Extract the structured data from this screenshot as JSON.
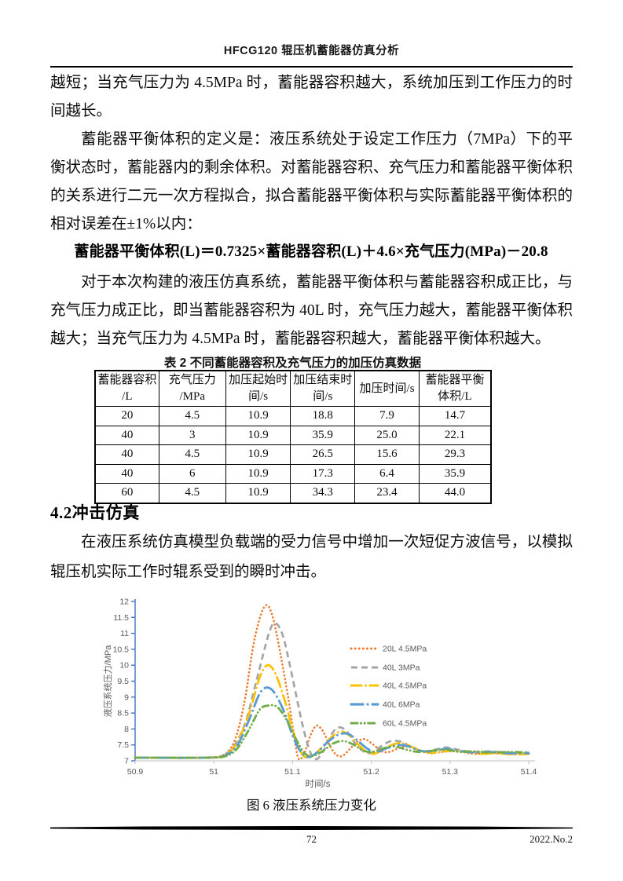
{
  "header": {
    "title": "HFCG120 辊压机蓄能器仿真分析"
  },
  "paragraphs": {
    "p1": "越短；当充气压力为 4.5MPa 时，蓄能器容积越大，系统加压到工作压力的时间越长。",
    "p2": "蓄能器平衡体积的定义是：液压系统处于设定工作压力（7MPa）下的平衡状态时，蓄能器内的剩余体积。对蓄能器容积、充气压力和蓄能器平衡体积的关系进行二元一次方程拟合，拟合蓄能器平衡体积与实际蓄能器平衡体积的相对误差在±1%以内：",
    "p3": "对于本次构建的液压仿真系统，蓄能器平衡体积与蓄能器容积成正比，与充气压力成正比，即当蓄能器容积为 40L 时，充气压力越大，蓄能器平衡体积越大；当充气压力为 4.5MPa 时，蓄能器容积越大，蓄能器平衡体积越大。",
    "p4": "在液压系统仿真模型负载端的受力信号中增加一次短促方波信号，以模拟辊压机实际工作时辊系受到的瞬时冲击。"
  },
  "formula": "蓄能器平衡体积(L)＝0.7325×蓄能器容积(L)＋4.6×充气压力(MPa)－20.8",
  "section_heading": "4.2冲击仿真",
  "table": {
    "caption": "表 2 不同蓄能器容积及充气压力的加压仿真数据",
    "headers": [
      {
        "l1": "蓄能器容积",
        "l2": "/L"
      },
      {
        "l1": "充气压力",
        "l2": "/MPa"
      },
      {
        "l1": "加压起始时",
        "l2": "间/s"
      },
      {
        "l1": "加压结束时",
        "l2": "间/s"
      },
      {
        "l1": "加压时间/s",
        "l2": ""
      },
      {
        "l1": "蓄能器平衡",
        "l2": "体积/L"
      }
    ],
    "rows": [
      [
        "20",
        "4.5",
        "10.9",
        "18.8",
        "7.9",
        "14.7"
      ],
      [
        "40",
        "3",
        "10.9",
        "35.9",
        "25.0",
        "22.1"
      ],
      [
        "40",
        "4.5",
        "10.9",
        "26.5",
        "15.6",
        "29.3"
      ],
      [
        "40",
        "6",
        "10.9",
        "17.3",
        "6.4",
        "35.9"
      ],
      [
        "60",
        "4.5",
        "10.9",
        "34.3",
        "23.4",
        "44.0"
      ]
    ]
  },
  "figure": {
    "caption": "图 6 液压系统压力变化"
  },
  "footer": {
    "page_number": "72",
    "issue": "2022.No.2"
  },
  "chart_data": {
    "type": "line",
    "title": "",
    "xlabel": "时间/s",
    "ylabel": "液压系统压力/MPa",
    "xlim": [
      50.9,
      51.4
    ],
    "ylim": [
      7,
      12
    ],
    "x_ticks": [
      "50.9",
      "51",
      "51.1",
      "51.2",
      "51.3",
      "51.4"
    ],
    "y_ticks": [
      "12",
      "11.5",
      "11",
      "10.5",
      "10",
      "9.5",
      "9",
      "8.5",
      "8",
      "7.5",
      "7"
    ],
    "grid": false,
    "legend_position": "inside-right",
    "axis_color": "#4472C4",
    "x_axis_color": "#C9C9C9",
    "tick_label_color": "#595959",
    "series": [
      {
        "name": "20L 4.5MPa",
        "color": "#ED7D31",
        "dash": "dot",
        "points": [
          [
            50.9,
            7.1
          ],
          [
            50.98,
            7.1
          ],
          [
            51.005,
            7.12
          ],
          [
            51.02,
            7.35
          ],
          [
            51.03,
            7.9
          ],
          [
            51.04,
            9.0
          ],
          [
            51.05,
            10.6
          ],
          [
            51.06,
            11.6
          ],
          [
            51.068,
            11.88
          ],
          [
            51.076,
            11.4
          ],
          [
            51.085,
            10.3
          ],
          [
            51.095,
            8.9
          ],
          [
            51.103,
            7.6
          ],
          [
            51.108,
            7.05
          ],
          [
            51.115,
            7.25
          ],
          [
            51.122,
            7.75
          ],
          [
            51.13,
            8.1
          ],
          [
            51.138,
            7.95
          ],
          [
            51.147,
            7.5
          ],
          [
            51.155,
            7.2
          ],
          [
            51.163,
            7.15
          ],
          [
            51.172,
            7.35
          ],
          [
            51.182,
            7.6
          ],
          [
            51.192,
            7.68
          ],
          [
            51.203,
            7.5
          ],
          [
            51.213,
            7.3
          ],
          [
            51.223,
            7.28
          ],
          [
            51.235,
            7.4
          ],
          [
            51.247,
            7.45
          ],
          [
            51.26,
            7.33
          ],
          [
            51.275,
            7.24
          ],
          [
            51.29,
            7.28
          ],
          [
            51.31,
            7.3
          ],
          [
            51.33,
            7.22
          ],
          [
            51.35,
            7.25
          ],
          [
            51.37,
            7.22
          ],
          [
            51.4,
            7.22
          ]
        ]
      },
      {
        "name": "40L 3MPa",
        "color": "#A5A5A5",
        "dash": "dash",
        "points": [
          [
            50.9,
            7.1
          ],
          [
            50.99,
            7.1
          ],
          [
            51.01,
            7.15
          ],
          [
            51.025,
            7.45
          ],
          [
            51.04,
            8.2
          ],
          [
            51.055,
            9.6
          ],
          [
            51.07,
            11.0
          ],
          [
            51.078,
            11.32
          ],
          [
            51.088,
            10.9
          ],
          [
            51.1,
            9.6
          ],
          [
            51.112,
            8.2
          ],
          [
            51.122,
            7.3
          ],
          [
            51.13,
            7.05
          ],
          [
            51.14,
            7.35
          ],
          [
            51.15,
            7.85
          ],
          [
            51.158,
            8.05
          ],
          [
            51.168,
            7.95
          ],
          [
            51.178,
            7.6
          ],
          [
            51.19,
            7.3
          ],
          [
            51.2,
            7.25
          ],
          [
            51.212,
            7.45
          ],
          [
            51.225,
            7.62
          ],
          [
            51.238,
            7.6
          ],
          [
            51.25,
            7.45
          ],
          [
            51.265,
            7.3
          ],
          [
            51.28,
            7.35
          ],
          [
            51.295,
            7.42
          ],
          [
            51.31,
            7.35
          ],
          [
            51.33,
            7.28
          ],
          [
            51.35,
            7.3
          ],
          [
            51.375,
            7.26
          ],
          [
            51.4,
            7.26
          ]
        ]
      },
      {
        "name": "40L 4.5MPa",
        "color": "#FFC000",
        "dash": "long-dash-dot",
        "points": [
          [
            50.9,
            7.1
          ],
          [
            50.99,
            7.1
          ],
          [
            51.015,
            7.2
          ],
          [
            51.03,
            7.6
          ],
          [
            51.045,
            8.5
          ],
          [
            51.058,
            9.6
          ],
          [
            51.068,
            10.0
          ],
          [
            51.078,
            9.75
          ],
          [
            51.09,
            8.9
          ],
          [
            51.1,
            8.0
          ],
          [
            51.11,
            7.3
          ],
          [
            51.118,
            7.1
          ],
          [
            51.128,
            7.2
          ],
          [
            51.14,
            7.5
          ],
          [
            51.152,
            7.8
          ],
          [
            51.162,
            7.92
          ],
          [
            51.172,
            7.8
          ],
          [
            51.182,
            7.55
          ],
          [
            51.193,
            7.3
          ],
          [
            51.203,
            7.22
          ],
          [
            51.215,
            7.35
          ],
          [
            51.228,
            7.52
          ],
          [
            51.24,
            7.55
          ],
          [
            51.253,
            7.42
          ],
          [
            51.266,
            7.3
          ],
          [
            51.28,
            7.25
          ],
          [
            51.3,
            7.32
          ],
          [
            51.32,
            7.28
          ],
          [
            51.34,
            7.22
          ],
          [
            51.36,
            7.24
          ],
          [
            51.38,
            7.2
          ],
          [
            51.4,
            7.22
          ]
        ]
      },
      {
        "name": "40L 6MPa",
        "color": "#5B9BD5",
        "dash": "dash-dot",
        "points": [
          [
            50.9,
            7.1
          ],
          [
            50.99,
            7.1
          ],
          [
            51.015,
            7.18
          ],
          [
            51.03,
            7.5
          ],
          [
            51.045,
            8.3
          ],
          [
            51.058,
            9.1
          ],
          [
            51.068,
            9.3
          ],
          [
            51.078,
            9.1
          ],
          [
            51.09,
            8.5
          ],
          [
            51.1,
            7.8
          ],
          [
            51.11,
            7.3
          ],
          [
            51.12,
            7.12
          ],
          [
            51.132,
            7.28
          ],
          [
            51.145,
            7.6
          ],
          [
            51.158,
            7.82
          ],
          [
            51.17,
            7.85
          ],
          [
            51.182,
            7.65
          ],
          [
            51.194,
            7.4
          ],
          [
            51.206,
            7.28
          ],
          [
            51.22,
            7.4
          ],
          [
            51.234,
            7.5
          ],
          [
            51.248,
            7.45
          ],
          [
            51.262,
            7.32
          ],
          [
            51.278,
            7.3
          ],
          [
            51.295,
            7.38
          ],
          [
            51.31,
            7.32
          ],
          [
            51.33,
            7.26
          ],
          [
            51.35,
            7.28
          ],
          [
            51.375,
            7.24
          ],
          [
            51.4,
            7.24
          ]
        ]
      },
      {
        "name": "60L 4.5MPa",
        "color": "#70AD47",
        "dash": "dash-dot-dot",
        "points": [
          [
            50.9,
            7.1
          ],
          [
            50.99,
            7.1
          ],
          [
            51.015,
            7.15
          ],
          [
            51.03,
            7.4
          ],
          [
            51.045,
            8.0
          ],
          [
            51.058,
            8.6
          ],
          [
            51.068,
            8.73
          ],
          [
            51.08,
            8.7
          ],
          [
            51.092,
            8.3
          ],
          [
            51.104,
            7.7
          ],
          [
            51.115,
            7.25
          ],
          [
            51.125,
            7.15
          ],
          [
            51.138,
            7.3
          ],
          [
            51.152,
            7.55
          ],
          [
            51.165,
            7.62
          ],
          [
            51.178,
            7.5
          ],
          [
            51.19,
            7.32
          ],
          [
            51.202,
            7.28
          ],
          [
            51.216,
            7.4
          ],
          [
            51.23,
            7.45
          ],
          [
            51.245,
            7.35
          ],
          [
            51.26,
            7.28
          ],
          [
            51.278,
            7.32
          ],
          [
            51.295,
            7.35
          ],
          [
            51.312,
            7.28
          ],
          [
            51.33,
            7.3
          ],
          [
            51.35,
            7.26
          ],
          [
            51.375,
            7.28
          ],
          [
            51.4,
            7.26
          ]
        ]
      }
    ]
  }
}
